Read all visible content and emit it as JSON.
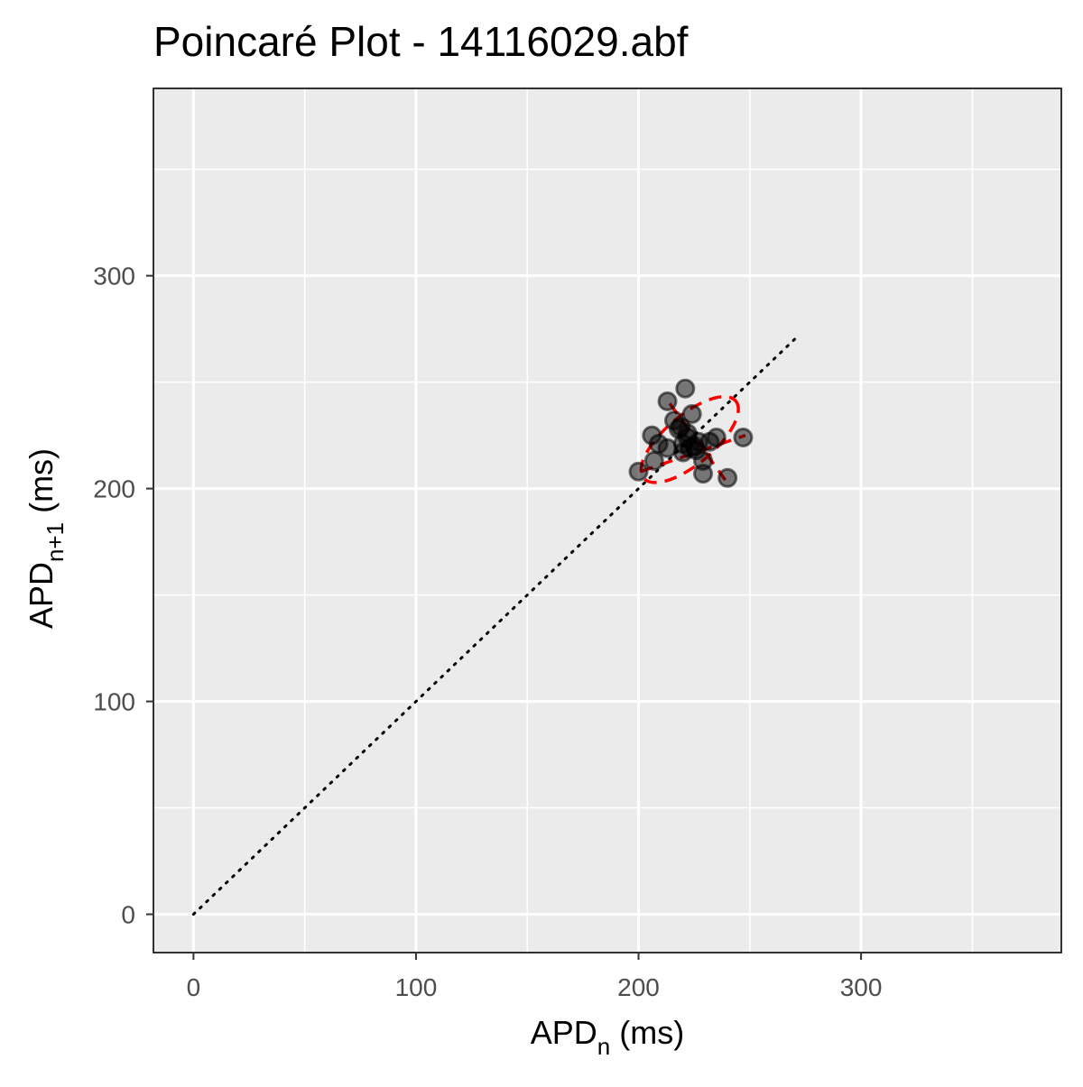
{
  "chart_data": {
    "type": "scatter",
    "title": "Poincaré Plot - 14116029.abf",
    "xlabel": {
      "main": "APD",
      "sub": "n",
      "unit": " (ms)"
    },
    "ylabel": {
      "main": "APD",
      "sub": "n+1",
      "unit": " (ms)"
    },
    "xlim": [
      -18,
      390
    ],
    "ylim": [
      -18,
      388
    ],
    "x_ticks": [
      0,
      100,
      200,
      300
    ],
    "y_ticks": [
      0,
      100,
      200,
      300
    ],
    "x_tick_labels": [
      "0",
      "100",
      "200",
      "300"
    ],
    "y_tick_labels": [
      "0",
      "100",
      "200",
      "300"
    ],
    "minor_grid_x": [
      50,
      150,
      250,
      350
    ],
    "minor_grid_y": [
      50,
      150,
      250,
      350
    ],
    "grid": true,
    "background": "#ebebeb",
    "point_color": "#000000",
    "ellipse_color": "#ff0000",
    "identity_line": {
      "from": 0,
      "to": 272,
      "style": "dotted",
      "color": "#000000"
    },
    "points": [
      {
        "x": 200,
        "y": 208
      },
      {
        "x": 206,
        "y": 225
      },
      {
        "x": 207,
        "y": 213
      },
      {
        "x": 209,
        "y": 221
      },
      {
        "x": 213,
        "y": 219
      },
      {
        "x": 213,
        "y": 241
      },
      {
        "x": 216,
        "y": 232
      },
      {
        "x": 218,
        "y": 228
      },
      {
        "x": 219,
        "y": 229
      },
      {
        "x": 220,
        "y": 221
      },
      {
        "x": 220,
        "y": 217
      },
      {
        "x": 221,
        "y": 247
      },
      {
        "x": 222,
        "y": 224
      },
      {
        "x": 222,
        "y": 226
      },
      {
        "x": 223,
        "y": 219
      },
      {
        "x": 224,
        "y": 235
      },
      {
        "x": 225,
        "y": 220
      },
      {
        "x": 226,
        "y": 218
      },
      {
        "x": 227,
        "y": 222
      },
      {
        "x": 229,
        "y": 213
      },
      {
        "x": 229,
        "y": 207
      },
      {
        "x": 232,
        "y": 222
      },
      {
        "x": 235,
        "y": 224
      },
      {
        "x": 240,
        "y": 205
      },
      {
        "x": 247,
        "y": 224
      }
    ],
    "ellipse": {
      "cx": 223,
      "cy": 223,
      "semi_major": 27,
      "semi_minor": 11.5,
      "angle_deg": -40
    },
    "ellipse_axes": [
      {
        "from": [
          201,
          208
        ],
        "to": [
          248,
          225
        ]
      },
      {
        "from": [
          214,
          240
        ],
        "to": [
          239,
          204
        ]
      }
    ]
  }
}
